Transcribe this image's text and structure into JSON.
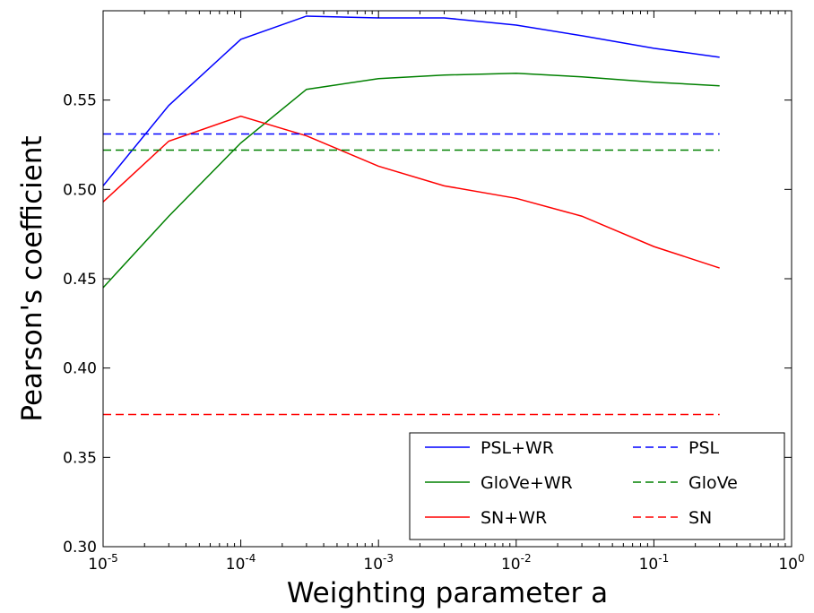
{
  "chart_data": {
    "type": "line",
    "xlabel": "Weighting parameter a",
    "ylabel": "Pearson's coefficient",
    "x_scale": "log",
    "xlim": [
      1e-05,
      1
    ],
    "ylim": [
      0.3,
      0.6
    ],
    "x_ticks": [
      {
        "value": 1e-05,
        "base": "10",
        "exp": "-5"
      },
      {
        "value": 0.0001,
        "base": "10",
        "exp": "-4"
      },
      {
        "value": 0.001,
        "base": "10",
        "exp": "-3"
      },
      {
        "value": 0.01,
        "base": "10",
        "exp": "-2"
      },
      {
        "value": 0.1,
        "base": "10",
        "exp": "-1"
      },
      {
        "value": 1,
        "base": "10",
        "exp": "0"
      }
    ],
    "y_ticks": [
      "0.30",
      "0.35",
      "0.40",
      "0.45",
      "0.50",
      "0.55"
    ],
    "grid": false,
    "legend_position": "bottom-right",
    "x": [
      1e-05,
      3e-05,
      0.0001,
      0.0003,
      0.001,
      0.003,
      0.01,
      0.03,
      0.1,
      0.3
    ],
    "series": [
      {
        "name": "PSL+WR",
        "color": "#0000ff",
        "style": "solid",
        "values": [
          0.502,
          0.547,
          0.584,
          0.597,
          0.596,
          0.596,
          0.592,
          0.586,
          0.579,
          0.574
        ]
      },
      {
        "name": "GloVe+WR",
        "color": "#008000",
        "style": "solid",
        "values": [
          0.445,
          0.485,
          0.526,
          0.556,
          0.562,
          0.564,
          0.565,
          0.563,
          0.56,
          0.558
        ]
      },
      {
        "name": "SN+WR",
        "color": "#ff0000",
        "style": "solid",
        "values": [
          0.493,
          0.527,
          0.541,
          0.53,
          0.513,
          0.502,
          0.495,
          0.485,
          0.468,
          0.456
        ]
      },
      {
        "name": "PSL",
        "color": "#0000ff",
        "style": "dashed",
        "values": [
          0.531,
          0.531,
          0.531,
          0.531,
          0.531,
          0.531,
          0.531,
          0.531,
          0.531,
          0.531
        ]
      },
      {
        "name": "GloVe",
        "color": "#008000",
        "style": "dashed",
        "values": [
          0.522,
          0.522,
          0.522,
          0.522,
          0.522,
          0.522,
          0.522,
          0.522,
          0.522,
          0.522
        ]
      },
      {
        "name": "SN",
        "color": "#ff0000",
        "style": "dashed",
        "values": [
          0.374,
          0.374,
          0.374,
          0.374,
          0.374,
          0.374,
          0.374,
          0.374,
          0.374,
          0.374
        ]
      }
    ]
  }
}
